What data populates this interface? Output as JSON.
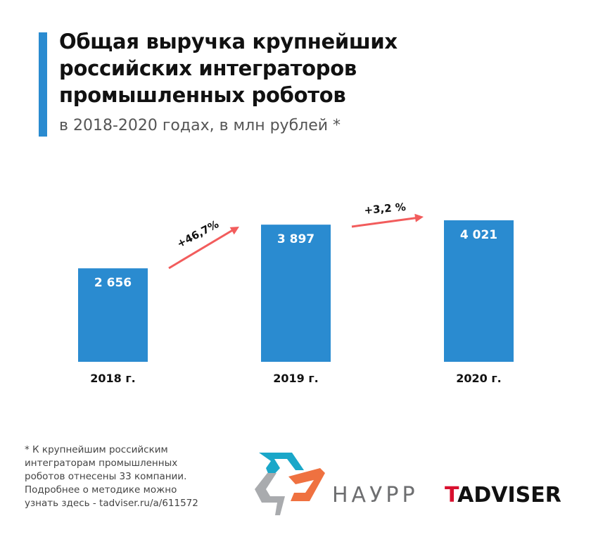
{
  "header": {
    "title": "Общая выручка крупнейших российских интеграторов промышленных роботов",
    "subtitle": "в 2018-2020 годах, в млн рублей *"
  },
  "chart_data": {
    "type": "bar",
    "title": "Общая выручка крупнейших российских интеграторов промышленных роботов",
    "subtitle": "в 2018-2020 годах, в млн рублей *",
    "categories": [
      "2018 г.",
      "2019 г.",
      "2020 г."
    ],
    "values": [
      2656,
      3897,
      4021
    ],
    "value_labels": [
      "2 656",
      "3 897",
      "4 021"
    ],
    "growth_annotations": [
      "+46,7%",
      "+3,2 %"
    ],
    "xlabel": "",
    "ylabel": "",
    "ylim": [
      0,
      5000
    ],
    "grid": false,
    "bar_color": "#2a8bd0",
    "arrow_color": "#f25c5c"
  },
  "footnote": [
    "* К крупнейшим российским",
    "интеграторам промышленных",
    "роботов отнесены 33 компании.",
    "Подробнее о методике можно",
    "узнать здесь - tadviser.ru/a/611572"
  ],
  "logos": {
    "haypp": "НАУРР",
    "tadviser_first": "T",
    "tadviser_rest": "ADVISER"
  }
}
